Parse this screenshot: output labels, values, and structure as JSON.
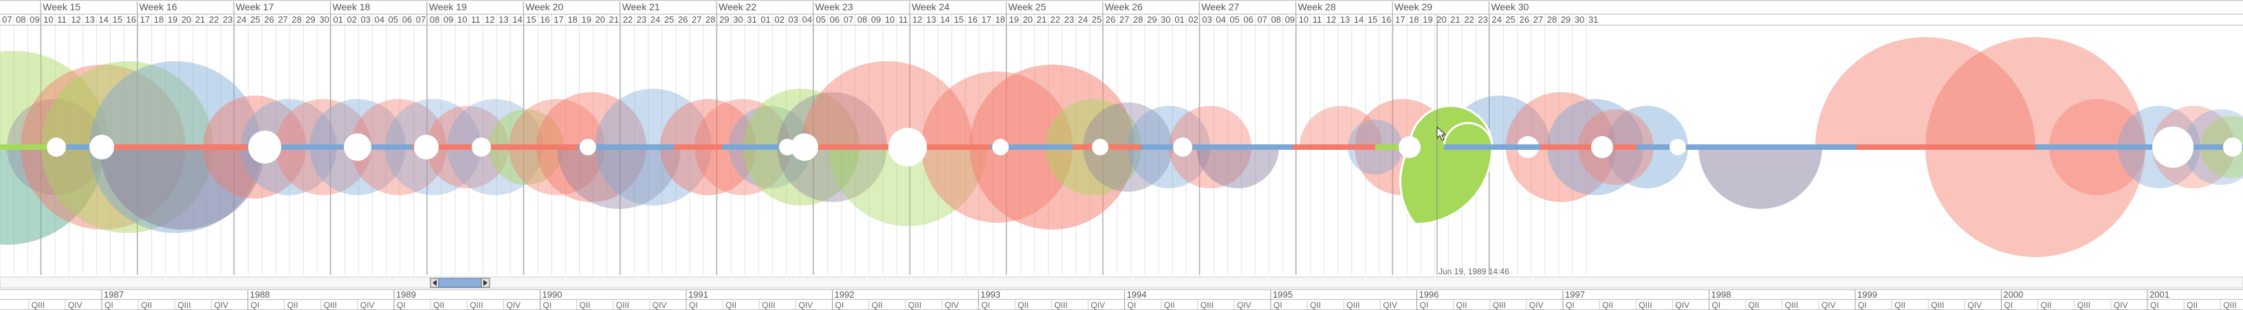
{
  "week_labels": [
    "Week 15",
    "Week 16",
    "Week 17",
    "Week 18",
    "Week 19",
    "Week 20",
    "Week 21",
    "Week 22",
    "Week 23",
    "Week 24",
    "Week 25",
    "Week 26",
    "Week 27",
    "Week 28",
    "Week 29",
    "Week 30"
  ],
  "day_labels": [
    "07",
    "08",
    "09",
    "10",
    "11",
    "12",
    "13",
    "14",
    "15",
    "16",
    "17",
    "18",
    "19",
    "20",
    "21",
    "22",
    "23",
    "24",
    "25",
    "26",
    "27",
    "28",
    "29",
    "30",
    "01",
    "02",
    "03",
    "04",
    "05",
    "06",
    "07",
    "08",
    "09",
    "10",
    "11",
    "12",
    "13",
    "14",
    "15",
    "16",
    "17",
    "18",
    "19",
    "20",
    "21",
    "22",
    "23",
    "24",
    "25",
    "26",
    "27",
    "28",
    "29",
    "30",
    "31",
    "01",
    "02",
    "03",
    "04",
    "05",
    "06",
    "07",
    "08",
    "09",
    "10",
    "11",
    "12",
    "13",
    "14",
    "15",
    "16",
    "17",
    "18",
    "19",
    "20",
    "21",
    "22",
    "23",
    "24",
    "25",
    "26",
    "27",
    "28",
    "29",
    "30",
    "01",
    "02",
    "03",
    "04",
    "05",
    "06",
    "07",
    "08",
    "09",
    "10",
    "11",
    "12",
    "13",
    "14",
    "15",
    "16",
    "17",
    "18",
    "19",
    "20",
    "21",
    "22",
    "23",
    "24",
    "25",
    "26",
    "27",
    "28",
    "29",
    "30",
    "31"
  ],
  "year_labels": [
    "1987",
    "1988",
    "1989",
    "1990",
    "1991",
    "1992",
    "1993",
    "1994",
    "1995",
    "1996",
    "1997",
    "1998",
    "1999",
    "2000",
    "2001"
  ],
  "quarter_labels": [
    "QI",
    "QII",
    "QIII",
    "QIV"
  ],
  "cursor": {
    "label": "Jun 19, 1989 14:46"
  },
  "colors": {
    "red": "#f47b6b",
    "blue": "#7ba7d6",
    "green": "#a6d85a",
    "purple": "#8a7fa0",
    "teal": "#6bb59b",
    "slider": "#8faedb"
  },
  "icons": {
    "slider_left": "triangle-left-icon",
    "slider_right": "triangle-right-icon",
    "cursor": "mouse-pointer-icon"
  }
}
